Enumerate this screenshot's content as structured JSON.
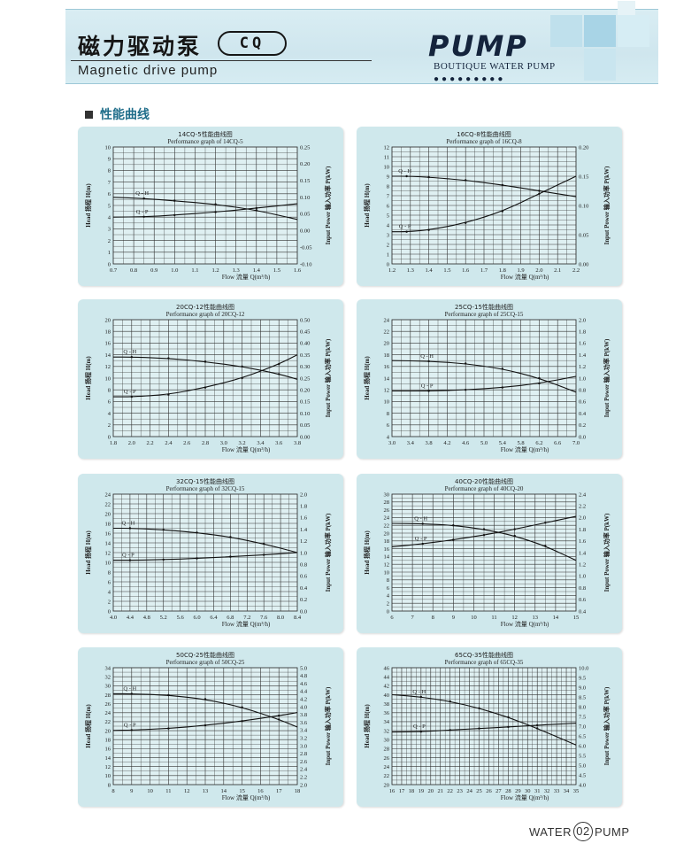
{
  "header": {
    "title_cn": "磁力驱动泵",
    "model_badge": "CQ",
    "subtitle_en": "Magnetic drive pump",
    "logo_main": "PUMP",
    "logo_sub": "BOUTIQUE WATER PUMP",
    "logo_dots": "●●●●●●●●●",
    "accent_color": "#9fd0e3"
  },
  "section": {
    "title": "性能曲线"
  },
  "footer": {
    "left": "WATER",
    "page": "02",
    "right": "PUMP"
  },
  "chart_data": [
    {
      "type": "line",
      "title": "14CQ-5性能曲线图",
      "subtitle": "Performance graph of 14CQ-5",
      "xlabel": "Flow  流量  Q(m³/h)",
      "ylabel": "Head 扬程 H(m)",
      "y2label": "Input Power  输入功率  P(kW)",
      "x_ticks": [
        "0.7",
        "0.8",
        "0.9",
        "1.0",
        "1.1",
        "1.2",
        "1.3",
        "1.4",
        "1.5",
        "1.6"
      ],
      "y_ticks": [
        "0",
        "1",
        "2",
        "3",
        "4",
        "5",
        "6",
        "7",
        "8",
        "9",
        "10"
      ],
      "y2_ticks": [
        "-0.10",
        "-0.05",
        "0.00",
        "0.05",
        "0.10",
        "0.15",
        "0.20",
        "0.25"
      ],
      "xlim": [
        0.7,
        1.6
      ],
      "ylim": [
        0,
        10
      ],
      "y2lim": [
        -0.1,
        0.25
      ],
      "grid": true,
      "series": [
        {
          "name": "Q - H",
          "axis": "left",
          "x": [
            0.7,
            0.85,
            1.0,
            1.2,
            1.4,
            1.6
          ],
          "y": [
            5.7,
            5.6,
            5.4,
            5.1,
            4.6,
            3.8
          ]
        },
        {
          "name": "Q - P",
          "axis": "right",
          "x": [
            0.7,
            0.85,
            1.0,
            1.2,
            1.4,
            1.6
          ],
          "y": [
            0.04,
            0.041,
            0.046,
            0.055,
            0.067,
            0.08
          ]
        }
      ]
    },
    {
      "type": "line",
      "title": "16CQ-8性能曲线图",
      "subtitle": "Performance graph of 16CQ-8",
      "xlabel": "Flow  流量  Q(m³/h)",
      "ylabel": "Head 扬程 H(m)",
      "y2label": "Input Power  输入功率  P(kW)",
      "x_ticks": [
        "1.2",
        "1.3",
        "1.4",
        "1.5",
        "1.6",
        "1.7",
        "1.8",
        "1.9",
        "2.0",
        "2.1",
        "2.2"
      ],
      "y_ticks": [
        "0",
        "1",
        "2",
        "3",
        "4",
        "5",
        "6",
        "7",
        "8",
        "9",
        "10",
        "11",
        "12"
      ],
      "y2_ticks": [
        "0.00",
        "0.05",
        "0.10",
        "0.15",
        "0.20"
      ],
      "xlim": [
        1.2,
        2.2
      ],
      "ylim": [
        0,
        12
      ],
      "y2lim": [
        0,
        0.2
      ],
      "grid": true,
      "series": [
        {
          "name": "Q - H",
          "axis": "left",
          "x": [
            1.2,
            1.28,
            1.4,
            1.6,
            1.8,
            2.0,
            2.2
          ],
          "y": [
            9.0,
            9.0,
            8.9,
            8.6,
            8.1,
            7.5,
            6.9
          ]
        },
        {
          "name": "Q - P",
          "axis": "right",
          "x": [
            1.2,
            1.28,
            1.4,
            1.6,
            1.8,
            2.0,
            2.2
          ],
          "y": [
            0.055,
            0.055,
            0.058,
            0.07,
            0.09,
            0.12,
            0.15
          ]
        }
      ]
    },
    {
      "type": "line",
      "title": "20CQ-12性能曲线图",
      "subtitle": "Performance graph of 20CQ-12",
      "xlabel": "Flow  流量  Q(m³/h)",
      "ylabel": "Head 扬程 H(m)",
      "y2label": "Input Power  输入功率  P(kW)",
      "x_ticks": [
        "1.8",
        "2.0",
        "2.2",
        "2.4",
        "2.6",
        "2.8",
        "3.0",
        "3.2",
        "3.4",
        "3.6",
        "3.8"
      ],
      "y_ticks": [
        "0",
        "2",
        "4",
        "6",
        "8",
        "10",
        "12",
        "14",
        "16",
        "18",
        "20"
      ],
      "y2_ticks": [
        "0.00",
        "0.05",
        "0.10",
        "0.15",
        "0.20",
        "0.25",
        "0.30",
        "0.35",
        "0.40",
        "0.45",
        "0.50"
      ],
      "xlim": [
        1.8,
        3.8
      ],
      "ylim": [
        0,
        20
      ],
      "y2lim": [
        0,
        0.5
      ],
      "grid": true,
      "series": [
        {
          "name": "Q - H",
          "axis": "left",
          "x": [
            1.8,
            2.0,
            2.4,
            2.8,
            3.2,
            3.6,
            3.8
          ],
          "y": [
            13.6,
            13.6,
            13.4,
            12.8,
            12.0,
            10.7,
            9.8
          ]
        },
        {
          "name": "Q - P",
          "axis": "right",
          "x": [
            1.8,
            2.0,
            2.4,
            2.8,
            3.2,
            3.6,
            3.8
          ],
          "y": [
            0.17,
            0.17,
            0.18,
            0.21,
            0.25,
            0.31,
            0.35
          ]
        }
      ]
    },
    {
      "type": "line",
      "title": "25CQ-15性能曲线图",
      "subtitle": "Performance graph of 25CQ-15",
      "xlabel": "Flow  流量  Q(m³/h)",
      "ylabel": "Head 扬程 H(m)",
      "y2label": "Input Power  输入功率  P(kW)",
      "x_ticks": [
        "3.0",
        "3.4",
        "3.8",
        "4.2",
        "4.6",
        "5.0",
        "5.4",
        "5.8",
        "6.2",
        "6.6",
        "7.0"
      ],
      "y_ticks": [
        "4",
        "6",
        "8",
        "10",
        "12",
        "14",
        "16",
        "18",
        "20",
        "22",
        "24"
      ],
      "y2_ticks": [
        "0.0",
        "0.2",
        "0.4",
        "0.6",
        "0.8",
        "1.0",
        "1.2",
        "1.4",
        "1.6",
        "1.8",
        "2.0"
      ],
      "xlim": [
        3.0,
        7.0
      ],
      "ylim": [
        4,
        24
      ],
      "y2lim": [
        0,
        2.0
      ],
      "grid": true,
      "series": [
        {
          "name": "Q - H",
          "axis": "left",
          "x": [
            3.0,
            3.8,
            4.6,
            5.4,
            6.2,
            7.0
          ],
          "y": [
            17.0,
            16.9,
            16.5,
            15.6,
            14.0,
            11.6
          ]
        },
        {
          "name": "Q - P",
          "axis": "right",
          "x": [
            3.0,
            3.8,
            4.6,
            5.4,
            6.2,
            7.0
          ],
          "y": [
            0.78,
            0.78,
            0.8,
            0.84,
            0.91,
            1.03
          ]
        }
      ]
    },
    {
      "type": "line",
      "title": "32CQ-15性能曲线图",
      "subtitle": "Performance graph of 32CQ-15",
      "xlabel": "Flow  流量  Q(m³/h)",
      "ylabel": "Head 扬程 H(m)",
      "y2label": "Input Power  输入功率  P(kW)",
      "x_ticks": [
        "4.0",
        "4.4",
        "4.8",
        "5.2",
        "5.6",
        "6.0",
        "6.4",
        "6.8",
        "7.2",
        "7.6",
        "8.0",
        "8.4"
      ],
      "y_ticks": [
        "0",
        "2",
        "4",
        "6",
        "8",
        "10",
        "12",
        "14",
        "16",
        "18",
        "20",
        "22",
        "24"
      ],
      "y2_ticks": [
        "0.0",
        "0.2",
        "0.4",
        "0.6",
        "0.8",
        "1.0",
        "1.2",
        "1.4",
        "1.6",
        "1.8",
        "2.0"
      ],
      "xlim": [
        4.0,
        8.4
      ],
      "ylim": [
        0,
        24
      ],
      "y2lim": [
        0,
        2.0
      ],
      "grid": true,
      "series": [
        {
          "name": "Q - H",
          "axis": "left",
          "x": [
            4.0,
            4.4,
            5.2,
            6.0,
            6.8,
            7.6,
            8.4
          ],
          "y": [
            17.0,
            17.0,
            16.7,
            16.1,
            15.2,
            13.8,
            12.0
          ]
        },
        {
          "name": "Q - P",
          "axis": "right",
          "x": [
            4.0,
            4.4,
            5.2,
            6.0,
            6.8,
            7.6,
            8.4
          ],
          "y": [
            0.87,
            0.87,
            0.88,
            0.9,
            0.93,
            0.96,
            1.0
          ]
        }
      ]
    },
    {
      "type": "line",
      "title": "40CQ-20性能曲线图",
      "subtitle": "Performance graph of 40CQ-20",
      "xlabel": "Flow  流量  Q(m³/h)",
      "ylabel": "Head 扬程 H(m)",
      "y2label": "Input Power  输入功率  P(kW)",
      "x_ticks": [
        "6",
        "7",
        "8",
        "9",
        "10",
        "11",
        "12",
        "13",
        "14",
        "15"
      ],
      "y_ticks": [
        "0",
        "2",
        "4",
        "6",
        "8",
        "10",
        "12",
        "14",
        "16",
        "18",
        "20",
        "22",
        "24",
        "26",
        "28",
        "30"
      ],
      "y2_ticks": [
        "0.4",
        "0.6",
        "0.8",
        "1.0",
        "1.2",
        "1.4",
        "1.6",
        "1.8",
        "2.0",
        "2.2",
        "2.4"
      ],
      "xlim": [
        6,
        15
      ],
      "ylim": [
        0,
        30
      ],
      "y2lim": [
        0.4,
        2.4
      ],
      "grid": true,
      "series": [
        {
          "name": "Q - H",
          "axis": "left",
          "x": [
            6,
            7.5,
            9,
            10.5,
            12,
            13.5,
            15
          ],
          "y": [
            22.5,
            22.4,
            22.0,
            21.0,
            19.3,
            16.7,
            13.0
          ]
        },
        {
          "name": "Q - P",
          "axis": "right",
          "x": [
            6,
            7.5,
            9,
            10.5,
            12,
            13.5,
            15
          ],
          "y": [
            1.5,
            1.55,
            1.62,
            1.7,
            1.8,
            1.91,
            2.02
          ]
        }
      ]
    },
    {
      "type": "line",
      "title": "50CQ-25性能曲线图",
      "subtitle": "Performance graph of 50CQ-25",
      "xlabel": "Flow  流量  Q(m³/h)",
      "ylabel": "Head 扬程 H(m)",
      "y2label": "Input Power  输入功率  P(kW)",
      "x_ticks": [
        "8",
        "9",
        "10",
        "11",
        "12",
        "13",
        "14",
        "15",
        "16",
        "17",
        "18"
      ],
      "y_ticks": [
        "8",
        "10",
        "12",
        "14",
        "16",
        "18",
        "20",
        "22",
        "24",
        "26",
        "28",
        "30",
        "32",
        "34"
      ],
      "y2_ticks": [
        "2.0",
        "2.2",
        "2.4",
        "2.6",
        "2.8",
        "3.0",
        "3.2",
        "3.4",
        "3.6",
        "3.8",
        "4.0",
        "4.2",
        "4.4",
        "4.6",
        "4.8",
        "5.0"
      ],
      "xlim": [
        8,
        18
      ],
      "ylim": [
        8,
        34
      ],
      "y2lim": [
        2.0,
        5.0
      ],
      "grid": true,
      "series": [
        {
          "name": "Q - H",
          "axis": "left",
          "x": [
            8,
            9,
            11,
            13,
            15,
            17,
            18
          ],
          "y": [
            28.2,
            28.2,
            27.9,
            27.0,
            25.2,
            22.5,
            20.8
          ]
        },
        {
          "name": "Q - P",
          "axis": "right",
          "x": [
            8,
            9,
            11,
            13,
            15,
            17,
            18
          ],
          "y": [
            3.39,
            3.4,
            3.44,
            3.52,
            3.63,
            3.77,
            3.85
          ]
        }
      ]
    },
    {
      "type": "line",
      "title": "65CQ-35性能曲线图",
      "subtitle": "Performance graph of 65CQ-35",
      "xlabel": "Flow  流量  Q(m³/h)",
      "ylabel": "Head 扬程 H(m)",
      "y2label": "Input Power  输入功率  P(kW)",
      "x_ticks": [
        "16",
        "17",
        "18",
        "19",
        "20",
        "21",
        "22",
        "23",
        "24",
        "25",
        "26",
        "27",
        "28",
        "29",
        "30",
        "31",
        "32",
        "33",
        "34",
        "35"
      ],
      "y_ticks": [
        "20",
        "22",
        "24",
        "26",
        "28",
        "30",
        "32",
        "34",
        "36",
        "38",
        "40",
        "42",
        "44",
        "46"
      ],
      "y2_ticks": [
        "4.0",
        "4.5",
        "5.0",
        "5.5",
        "6.0",
        "6.5",
        "7.0",
        "7.5",
        "8.0",
        "8.5",
        "9.0",
        "9.5",
        "10.0"
      ],
      "xlim": [
        16,
        35
      ],
      "ylim": [
        20,
        46
      ],
      "y2lim": [
        4.0,
        10.0
      ],
      "grid": true,
      "series": [
        {
          "name": "Q - H",
          "axis": "left",
          "x": [
            16,
            19,
            22,
            25,
            28,
            31,
            35
          ],
          "y": [
            40.0,
            39.5,
            38.5,
            37.0,
            35.0,
            32.5,
            28.8
          ]
        },
        {
          "name": "Q - P",
          "axis": "right",
          "x": [
            16,
            19,
            22,
            25,
            28,
            31,
            35
          ],
          "y": [
            6.7,
            6.72,
            6.8,
            6.88,
            6.96,
            7.05,
            7.15
          ]
        }
      ]
    }
  ]
}
